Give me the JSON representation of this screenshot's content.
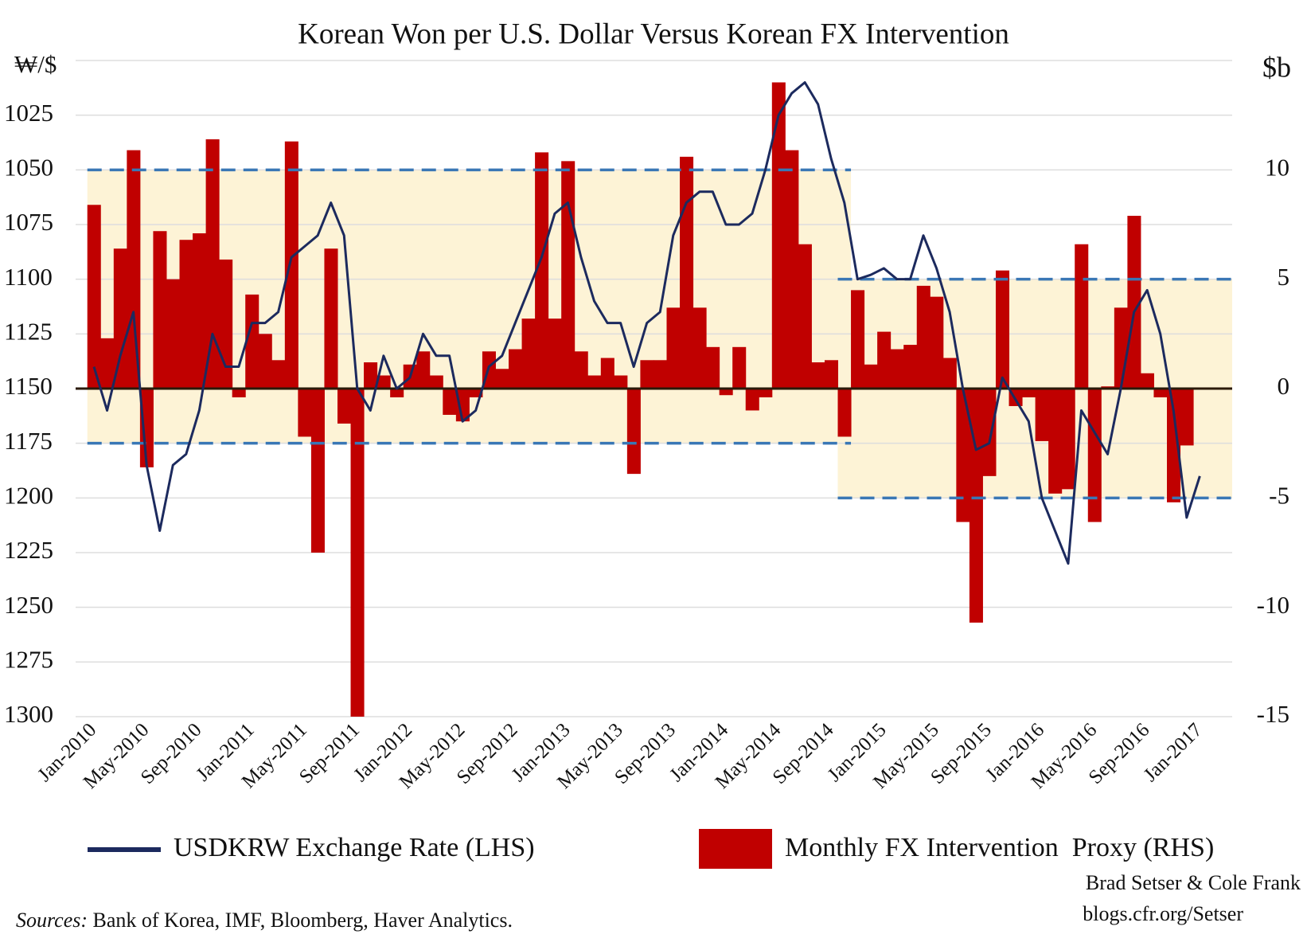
{
  "chart_data": {
    "type": "bar_line",
    "title": "Korean Won per U.S. Dollar Versus Korean FX Intervention",
    "y_label": "₩/$",
    "y2_label": "$b",
    "categories": [
      "Jan-2010",
      null,
      null,
      null,
      "May-2010",
      null,
      null,
      null,
      "Sep-2010",
      null,
      null,
      null,
      "Jan-2011",
      null,
      null,
      null,
      "May-2011",
      null,
      null,
      null,
      "Sep-2011",
      null,
      null,
      null,
      "Jan-2012",
      null,
      null,
      null,
      "May-2012",
      null,
      null,
      null,
      "Sep-2012",
      null,
      null,
      null,
      "Jan-2013",
      null,
      null,
      null,
      "May-2013",
      null,
      null,
      null,
      "Sep-2013",
      null,
      null,
      null,
      "Jan-2014",
      null,
      null,
      null,
      "May-2014",
      null,
      null,
      null,
      "Sep-2014",
      null,
      null,
      null,
      "Jan-2015",
      null,
      null,
      null,
      "May-2015",
      null,
      null,
      null,
      "Sep-2015",
      null,
      null,
      null,
      "Jan-2016",
      null,
      null,
      null,
      "May-2016",
      null,
      null,
      null,
      "Sep-2016",
      null,
      null,
      null,
      "Jan-2017"
    ],
    "series": [
      {
        "name": "Monthly FX Intervention  Proxy (RHS)",
        "kind": "bar",
        "axis": "y2",
        "color": "#c00000",
        "values": [
          8.4,
          2.3,
          6.4,
          10.9,
          -3.6,
          7.2,
          5.0,
          6.8,
          7.1,
          11.4,
          5.9,
          -0.4,
          4.3,
          2.5,
          1.3,
          11.3,
          -2.2,
          -7.5,
          6.4,
          -1.6,
          -15,
          1.2,
          0.6,
          -0.4,
          1.1,
          1.7,
          0.6,
          -1.2,
          -1.5,
          -0.4,
          1.7,
          0.9,
          1.8,
          3.2,
          10.8,
          3.2,
          10.4,
          1.7,
          0.6,
          1.4,
          0.6,
          -3.9,
          1.3,
          1.3,
          3.7,
          10.6,
          3.7,
          1.9,
          -0.3,
          1.9,
          -1.0,
          -0.4,
          14.0,
          10.9,
          6.6,
          1.2,
          1.3,
          -2.2,
          4.5,
          1.1,
          2.6,
          1.8,
          2.0,
          4.7,
          4.2,
          1.4,
          -6.1,
          -10.7,
          -4.0,
          5.4,
          -0.8,
          -0.4,
          -2.4,
          -4.8,
          -4.6,
          6.6,
          -6.1,
          0.1,
          3.7,
          7.9,
          0.7,
          -0.4,
          -5.2,
          -2.6,
          null
        ]
      },
      {
        "name": "USDKRW Exchange Rate (LHS)",
        "kind": "line",
        "axis": "y",
        "color": "#1c2a5e",
        "values": [
          1140,
          1160,
          1135,
          1115,
          1185,
          1215,
          1185,
          1180,
          1160,
          1125,
          1140,
          1140,
          1120,
          1120,
          1115,
          1090,
          1085,
          1080,
          1065,
          1080,
          1150,
          1160,
          1135,
          1150,
          1145,
          1125,
          1135,
          1135,
          1165,
          1160,
          1140,
          1135,
          1120,
          1105,
          1090,
          1070,
          1065,
          1090,
          1110,
          1120,
          1120,
          1140,
          1120,
          1115,
          1080,
          1065,
          1060,
          1060,
          1075,
          1075,
          1070,
          1050,
          1025,
          1015,
          1010,
          1020,
          1045,
          1065,
          1100,
          1098,
          1095,
          1100,
          1100,
          1080,
          1095,
          1115,
          1150,
          1178,
          1175,
          1145,
          1155,
          1165,
          1200,
          1215,
          1230,
          1160,
          1170,
          1180,
          1150,
          1115,
          1105,
          1125,
          1160,
          1209,
          1190
        ]
      }
    ],
    "ylim": [
      1000,
      1300
    ],
    "y_inverted": true,
    "yticks": [
      1025,
      1050,
      1075,
      1100,
      1125,
      1150,
      1175,
      1200,
      1225,
      1250,
      1275,
      1300
    ],
    "y2lim": [
      -15,
      15
    ],
    "y2ticks": [
      -15,
      -10,
      -5,
      0,
      5,
      10
    ],
    "grid": true,
    "bands": [
      {
        "x": [
          0,
          57
        ],
        "y": [
          1050,
          1175
        ],
        "color": "#fdf3d6",
        "line_color": "#3a77b5"
      },
      {
        "x": [
          57,
          86
        ],
        "y": [
          1100,
          1200
        ],
        "color": "#fdf3d6",
        "line_color": "#3a77b5"
      }
    ],
    "credit": [
      "Brad Setser & Cole Frank",
      "blogs.cfr.org/Setser"
    ],
    "sources_label": "Sources:",
    "sources": "Bank of Korea, IMF, Bloomberg, Haver Analytics."
  }
}
